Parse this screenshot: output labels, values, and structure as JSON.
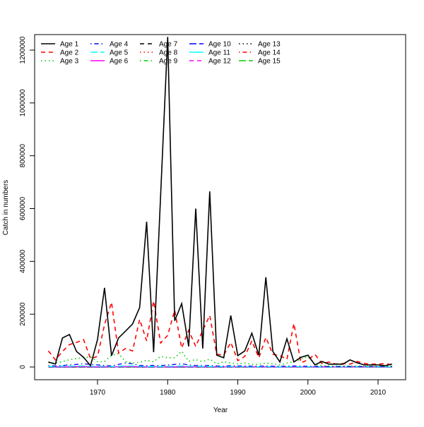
{
  "chart_data": {
    "type": "line",
    "title": "",
    "xlabel": "Year",
    "ylabel": "Catch in numbers",
    "xlim": [
      1963,
      2012
    ],
    "ylim": [
      0,
      1250000
    ],
    "xticks": [
      1970,
      1980,
      1990,
      2000,
      2010
    ],
    "yticks": [
      0,
      200000,
      400000,
      600000,
      800000,
      1000000,
      1200000
    ],
    "grid": false,
    "legend_position": "top-left",
    "x": [
      1963,
      1964,
      1965,
      1966,
      1967,
      1968,
      1969,
      1970,
      1971,
      1972,
      1973,
      1974,
      1975,
      1976,
      1977,
      1978,
      1979,
      1980,
      1981,
      1982,
      1983,
      1984,
      1985,
      1986,
      1987,
      1988,
      1989,
      1990,
      1991,
      1992,
      1993,
      1994,
      1995,
      1996,
      1997,
      1998,
      1999,
      2000,
      2001,
      2002,
      2003,
      2004,
      2005,
      2006,
      2007,
      2008,
      2009,
      2010,
      2011,
      2012
    ],
    "series": [
      {
        "name": "Age 1",
        "color": "#000000",
        "lty": "solid",
        "values": [
          19000,
          11000,
          110000,
          123000,
          59000,
          37000,
          5000,
          104000,
          300000,
          43000,
          110000,
          136000,
          163000,
          225000,
          550000,
          56000,
          650000,
          1250000,
          175000,
          240000,
          78000,
          600000,
          70000,
          665000,
          45000,
          35000,
          195000,
          43000,
          61000,
          128000,
          45000,
          340000,
          59000,
          19000,
          107000,
          19000,
          37000,
          45000,
          8000,
          21000,
          11000,
          11000,
          11000,
          27000,
          16000,
          8000,
          8000,
          8000,
          5000,
          11000
        ]
      },
      {
        "name": "Age 2",
        "color": "#ff0000",
        "lty": "dashed",
        "values": [
          61000,
          27000,
          59000,
          85000,
          93000,
          104000,
          32000,
          40000,
          160000,
          245000,
          53000,
          70000,
          61000,
          180000,
          99000,
          250000,
          91000,
          120000,
          215000,
          72000,
          139000,
          78000,
          139000,
          195000,
          48000,
          45000,
          93000,
          24000,
          40000,
          99000,
          35000,
          112000,
          48000,
          43000,
          29000,
          165000,
          16000,
          27000,
          48000,
          13000,
          19000,
          11000,
          13000,
          11000,
          21000,
          13000,
          11000,
          11000,
          13000,
          8000
        ]
      },
      {
        "name": "Age 3",
        "color": "#00cd00",
        "lty": "dotted",
        "values": [
          16000,
          15000,
          20000,
          28000,
          32000,
          35000,
          38000,
          20000,
          20000,
          45000,
          50000,
          20000,
          15000,
          18000,
          25000,
          20000,
          40000,
          35000,
          35000,
          60000,
          22000,
          28000,
          20000,
          30000,
          12000,
          20000,
          15000,
          12000,
          15000,
          10000,
          10000,
          15000,
          12000,
          8000,
          15000,
          20000,
          30000,
          40000,
          8000,
          6000,
          4000,
          4000,
          4000,
          4000,
          4000,
          3000,
          3000,
          3000,
          3000,
          3000
        ]
      },
      {
        "name": "Age 4",
        "color": "#0000ff",
        "lty": "dotdash",
        "values": [
          5000,
          4000,
          6000,
          8000,
          10000,
          12000,
          10000,
          8000,
          6000,
          4000,
          10000,
          15000,
          12000,
          6000,
          5000,
          6000,
          5000,
          8000,
          10000,
          12000,
          8000,
          6000,
          5000,
          6000,
          4000,
          3000,
          5000,
          4000,
          4000,
          3000,
          3000,
          4000,
          3000,
          3000,
          3000,
          4000,
          3000,
          3000,
          2000,
          2000,
          2000,
          2000,
          2000,
          2000,
          2000,
          2000,
          2000,
          2000,
          2000,
          2000
        ]
      },
      {
        "name": "Age 5",
        "color": "#00ffff",
        "lty": "longdash",
        "values": [
          2000,
          2000,
          3000,
          3000,
          4000,
          4000,
          3000,
          3000,
          3000,
          2000,
          3000,
          4000,
          4000,
          3000,
          2000,
          2000,
          2000,
          3000,
          3000,
          4000,
          3000,
          3000,
          2000,
          2000,
          2000,
          2000,
          2000,
          2000,
          2000,
          1000,
          1000,
          2000,
          1000,
          1000,
          1000,
          2000,
          1000,
          1000,
          1000,
          1000,
          1000,
          1000,
          1000,
          1000,
          1000,
          1000,
          1000,
          1000,
          1000,
          1000
        ]
      },
      {
        "name": "Age 6",
        "color": "#ff00ff",
        "lty": "solid",
        "values": [
          1000,
          1000,
          1000,
          1000,
          2000,
          2000,
          1000,
          1000,
          1000,
          1000,
          1000,
          2000,
          2000,
          1000,
          1000,
          1000,
          1000,
          1000,
          1000,
          2000,
          1000,
          1000,
          1000,
          1000,
          1000,
          1000,
          1000,
          1000,
          1000,
          500,
          500,
          1000,
          500,
          500,
          500,
          1000,
          500,
          500,
          500,
          500,
          500,
          500,
          500,
          500,
          500,
          500,
          500,
          500,
          500,
          500
        ]
      },
      {
        "name": "Age 7",
        "color": "#000000",
        "lty": "dashed",
        "values": [
          500,
          500,
          500,
          500,
          1000,
          1000,
          500,
          500,
          500,
          500,
          500,
          1000,
          1000,
          500,
          500,
          500,
          500,
          500,
          500,
          1000,
          500,
          500,
          500,
          500,
          500,
          500,
          500,
          500,
          500,
          300,
          300,
          500,
          300,
          300,
          300,
          500,
          300,
          300,
          300,
          300,
          300,
          300,
          300,
          300,
          300,
          300,
          300,
          300,
          300,
          300
        ]
      },
      {
        "name": "Age 8",
        "color": "#ff0000",
        "lty": "dotted",
        "values": [
          300,
          300,
          300,
          300,
          500,
          500,
          300,
          300,
          300,
          300,
          300,
          500,
          500,
          300,
          300,
          300,
          300,
          300,
          300,
          500,
          300,
          300,
          300,
          300,
          300,
          300,
          300,
          300,
          300,
          200,
          200,
          300,
          200,
          200,
          200,
          300,
          200,
          200,
          200,
          200,
          200,
          200,
          200,
          200,
          200,
          200,
          200,
          200,
          200,
          200
        ]
      },
      {
        "name": "Age 9",
        "color": "#00cd00",
        "lty": "dotdash",
        "values": [
          200,
          200,
          200,
          200,
          300,
          300,
          200,
          200,
          200,
          200,
          200,
          300,
          300,
          200,
          200,
          200,
          200,
          200,
          200,
          300,
          200,
          200,
          200,
          200,
          200,
          200,
          200,
          200,
          200,
          100,
          100,
          200,
          100,
          100,
          100,
          200,
          100,
          100,
          100,
          100,
          100,
          100,
          100,
          100,
          100,
          100,
          100,
          100,
          100,
          100
        ]
      },
      {
        "name": "Age 10",
        "color": "#0000ff",
        "lty": "longdash",
        "values": [
          100,
          100,
          100,
          100,
          200,
          200,
          100,
          100,
          100,
          100,
          100,
          200,
          200,
          100,
          100,
          100,
          100,
          100,
          100,
          200,
          100,
          100,
          100,
          100,
          100,
          100,
          100,
          100,
          100,
          100,
          100,
          100,
          100,
          100,
          100,
          100,
          100,
          100,
          100,
          100,
          100,
          100,
          100,
          100,
          100,
          100,
          100,
          100,
          100,
          100
        ]
      },
      {
        "name": "Age 11",
        "color": "#00ffff",
        "lty": "solid",
        "values": [
          100,
          100,
          100,
          100,
          100,
          100,
          100,
          100,
          100,
          100,
          100,
          100,
          100,
          100,
          100,
          100,
          100,
          100,
          100,
          100,
          100,
          100,
          100,
          100,
          100,
          100,
          100,
          100,
          100,
          100,
          100,
          100,
          100,
          100,
          100,
          100,
          100,
          100,
          100,
          100,
          100,
          100,
          100,
          100,
          100,
          100,
          100,
          100,
          100,
          100
        ]
      },
      {
        "name": "Age 12",
        "color": "#ff00ff",
        "lty": "dashed",
        "values": [
          50,
          50,
          50,
          50,
          50,
          50,
          50,
          50,
          50,
          50,
          50,
          50,
          50,
          50,
          50,
          50,
          50,
          50,
          50,
          50,
          50,
          50,
          50,
          50,
          50,
          50,
          50,
          50,
          50,
          50,
          50,
          50,
          50,
          50,
          50,
          50,
          50,
          50,
          50,
          50,
          50,
          50,
          50,
          50,
          50,
          50,
          50,
          50,
          50,
          50
        ]
      },
      {
        "name": "Age 13",
        "color": "#000000",
        "lty": "dotted",
        "values": [
          50,
          50,
          50,
          50,
          50,
          50,
          50,
          50,
          50,
          50,
          50,
          50,
          50,
          50,
          50,
          50,
          50,
          50,
          50,
          50,
          50,
          50,
          50,
          50,
          50,
          50,
          50,
          50,
          50,
          50,
          50,
          50,
          50,
          50,
          50,
          50,
          50,
          50,
          50,
          50,
          50,
          50,
          50,
          50,
          50,
          50,
          50,
          50,
          50,
          50
        ]
      },
      {
        "name": "Age 14",
        "color": "#ff0000",
        "lty": "dotdash",
        "values": [
          20,
          20,
          20,
          20,
          20,
          20,
          20,
          20,
          20,
          20,
          20,
          20,
          20,
          20,
          20,
          20,
          20,
          20,
          20,
          20,
          20,
          20,
          20,
          20,
          20,
          20,
          20,
          20,
          20,
          20,
          20,
          20,
          20,
          20,
          20,
          20,
          20,
          20,
          20,
          20,
          20,
          20,
          20,
          20,
          20,
          20,
          20,
          20,
          20,
          20
        ]
      },
      {
        "name": "Age 15",
        "color": "#00cd00",
        "lty": "longdash",
        "values": [
          100,
          100,
          100,
          100,
          100,
          100,
          100,
          100,
          100,
          100,
          100,
          100,
          100,
          100,
          100,
          100,
          100,
          100,
          100,
          100,
          100,
          100,
          100,
          100,
          100,
          100,
          100,
          100,
          100,
          100,
          100,
          100,
          100,
          100,
          100,
          100,
          100,
          100,
          100,
          100,
          100,
          100,
          100,
          100,
          100,
          100,
          100,
          100,
          100,
          100
        ]
      }
    ]
  }
}
